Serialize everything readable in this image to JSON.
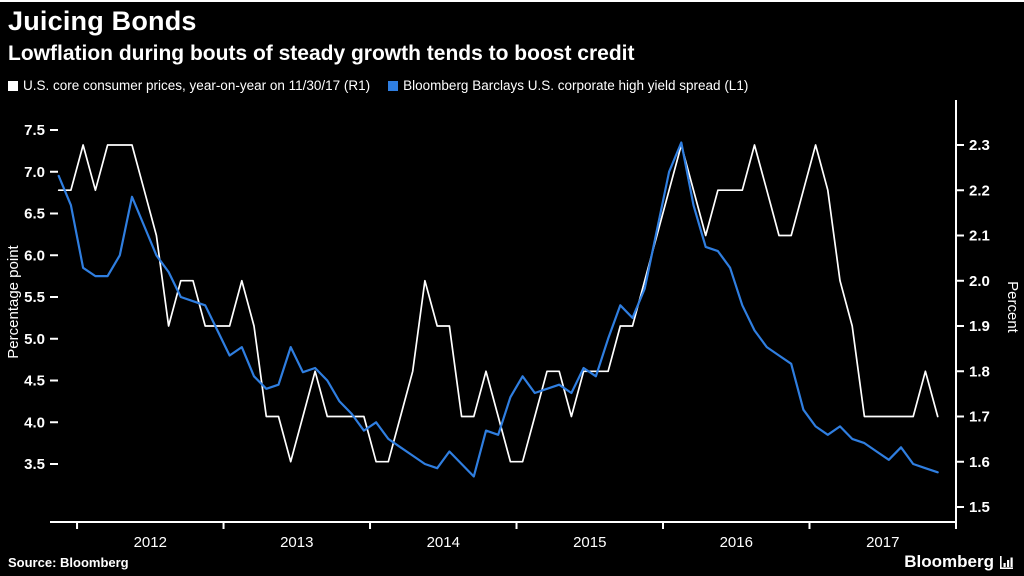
{
  "header": {
    "title": "Juicing Bonds",
    "subtitle": "Lowflation during bouts of steady growth tends to boost credit"
  },
  "legend": {
    "items": [
      {
        "label": "U.S. core consumer prices, year-on-year on 11/30/17 (R1)",
        "color": "#ffffff"
      },
      {
        "label": "Bloomberg Barclays U.S. corporate high yield spread (L1)",
        "color": "#2f7ee0"
      }
    ]
  },
  "footer": {
    "source": "Source:  Bloomberg",
    "brand": "Bloomberg"
  },
  "colors": {
    "background": "#000000",
    "axis": "#ffffff",
    "cpi_line": "#ffffff",
    "spread_line": "#2f7ee0"
  },
  "chart_data": {
    "type": "line",
    "title": "Juicing Bonds",
    "subtitle": "Lowflation during bouts of steady growth tends to boost credit",
    "x_tick_labels": [
      "2012",
      "2013",
      "2014",
      "2015",
      "2016",
      "2017"
    ],
    "x_year_ticks": [
      2012,
      2013,
      2014,
      2015,
      2016,
      2017,
      2018
    ],
    "x_range": [
      2011.87,
      2018.0
    ],
    "left_axis": {
      "title": "Percentage point",
      "tick_labels": [
        "7.5",
        "7.0",
        "6.5",
        "6.0",
        "5.5",
        "5.0",
        "4.5",
        "4.0",
        "3.5"
      ],
      "range_top_to_bottom": [
        7.5,
        3.5
      ]
    },
    "right_axis": {
      "title": "Percent",
      "tick_labels": [
        "2.3",
        "2.2",
        "2.1",
        "2.0",
        "1.9",
        "1.8",
        "1.7",
        "1.6",
        "1.5"
      ],
      "range_top_to_bottom": [
        2.3,
        1.5
      ]
    },
    "series": [
      {
        "name": "U.S. core consumer prices, year-on-year on 11/30/17 (R1)",
        "axis": "right",
        "color": "#ffffff",
        "unit": "Percent",
        "x_start": 2011.875,
        "x_step_years": 0.08333,
        "values": [
          2.2,
          2.2,
          2.3,
          2.2,
          2.3,
          2.3,
          2.3,
          2.2,
          2.1,
          1.9,
          2.0,
          2.0,
          1.9,
          1.9,
          1.9,
          2.0,
          1.9,
          1.7,
          1.7,
          1.6,
          1.7,
          1.8,
          1.7,
          1.7,
          1.7,
          1.7,
          1.6,
          1.6,
          1.7,
          1.8,
          2.0,
          1.9,
          1.9,
          1.7,
          1.7,
          1.8,
          1.7,
          1.6,
          1.6,
          1.7,
          1.8,
          1.8,
          1.7,
          1.8,
          1.8,
          1.8,
          1.9,
          1.9,
          2.0,
          2.1,
          2.2,
          2.3,
          2.2,
          2.1,
          2.2,
          2.2,
          2.2,
          2.3,
          2.2,
          2.1,
          2.1,
          2.2,
          2.3,
          2.2,
          2.0,
          1.9,
          1.7,
          1.7,
          1.7,
          1.7,
          1.7,
          1.8,
          1.7
        ]
      },
      {
        "name": "Bloomberg Barclays U.S. corporate high yield spread (L1)",
        "axis": "left",
        "color": "#2f7ee0",
        "unit": "Percentage point",
        "x_start": 2011.875,
        "x_step_years": 0.08333,
        "values": [
          6.95,
          6.6,
          5.85,
          5.75,
          5.75,
          6.0,
          6.7,
          6.35,
          6.0,
          5.8,
          5.5,
          5.45,
          5.4,
          5.1,
          4.8,
          4.9,
          4.55,
          4.4,
          4.45,
          4.9,
          4.6,
          4.65,
          4.5,
          4.25,
          4.1,
          3.9,
          4.0,
          3.8,
          3.7,
          3.6,
          3.5,
          3.45,
          3.65,
          3.5,
          3.35,
          3.9,
          3.85,
          4.3,
          4.55,
          4.35,
          4.4,
          4.45,
          4.35,
          4.65,
          4.55,
          5.0,
          5.4,
          5.25,
          5.6,
          6.3,
          7.0,
          7.35,
          6.6,
          6.1,
          6.05,
          5.85,
          5.4,
          5.1,
          4.9,
          4.8,
          4.7,
          4.15,
          3.95,
          3.85,
          3.95,
          3.8,
          3.75,
          3.65,
          3.55,
          3.7,
          3.5,
          3.45,
          3.4
        ]
      }
    ]
  }
}
